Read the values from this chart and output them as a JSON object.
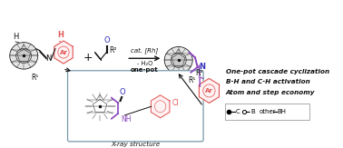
{
  "bg_color": "#ffffff",
  "text_right_line1": "One-pot cascade cyclization",
  "text_right_line2": "B-H and C-H activation",
  "text_right_line3": "Atom and step economy",
  "cat_label": "cat. [Rh]",
  "minus_water": "- H₂O",
  "one_pot": "one-pot",
  "xray_label": "X-ray structure",
  "color_ar": "#e05555",
  "color_blue": "#3333bb",
  "color_purple": "#8844bb",
  "color_black": "#111111",
  "color_gray": "#666666",
  "color_lgray": "#aaaaaa",
  "color_box": "#7799aa",
  "figw": 3.78,
  "figh": 1.63,
  "dpi": 100
}
